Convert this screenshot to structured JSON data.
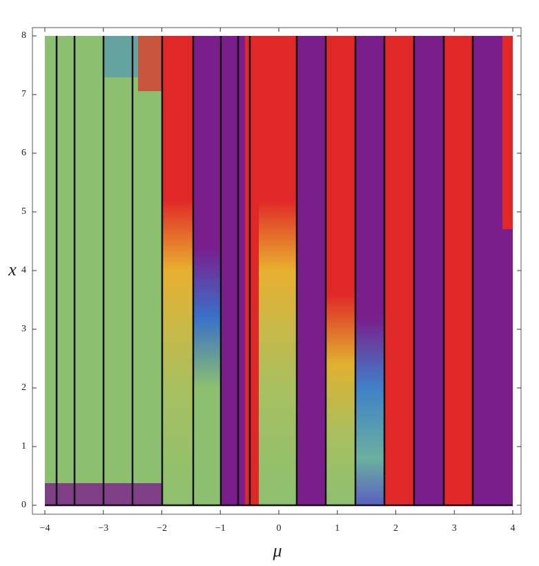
{
  "chart_data": {
    "type": "contour",
    "x_label": "μ",
    "y_label": "x",
    "xlim": [
      -4,
      4
    ],
    "ylim": [
      0,
      8
    ],
    "xticks": [
      {
        "value": -4,
        "label": "−4"
      },
      {
        "value": -3,
        "label": "−3"
      },
      {
        "value": -2,
        "label": "−2"
      },
      {
        "value": -1,
        "label": "−1"
      },
      0,
      1,
      2,
      3,
      4
    ],
    "yticks": [
      0,
      1,
      2,
      3,
      4,
      5,
      6,
      7,
      8
    ]
  }
}
